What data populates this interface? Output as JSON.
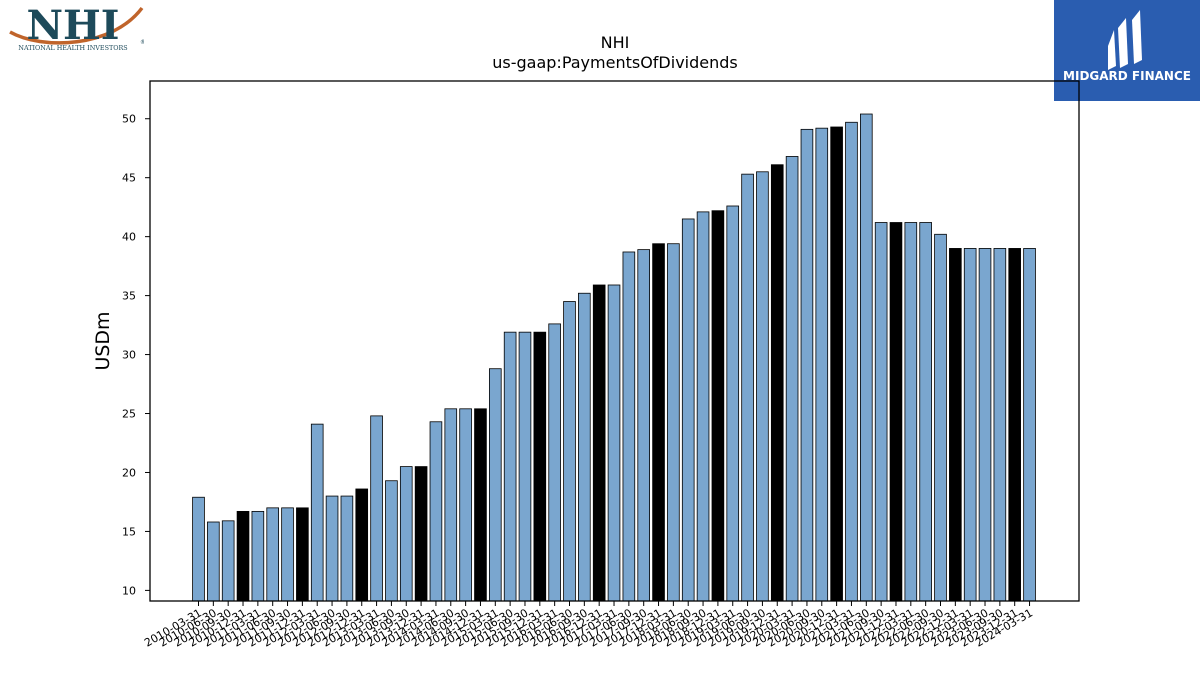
{
  "logo_left": {
    "letters": "NHI",
    "name": "NATIONAL HEALTH INVESTORS",
    "mark": "®",
    "color": "#1d4a5a",
    "swoosh": "#c0642b"
  },
  "logo_right": {
    "name": "MIDGARD FINANCE",
    "bg": "#2a5db0"
  },
  "chart_data": {
    "type": "bar",
    "title": "NHI",
    "subtitle": "us-gaap:PaymentsOfDividends",
    "xlabel": "",
    "ylabel": "USDm",
    "ylim": [
      9.1,
      53.2
    ],
    "yticks": [
      10,
      15,
      20,
      25,
      30,
      35,
      40,
      45,
      50
    ],
    "grid": false,
    "colors": {
      "normal": "#7aa6cf",
      "highlight": "#000000"
    },
    "categories": [
      "2010-03-31",
      "2010-06-30",
      "2010-09-30",
      "2010-12-31",
      "2011-03-31",
      "2011-06-30",
      "2011-09-30",
      "2011-12-31",
      "2012-03-31",
      "2012-06-30",
      "2012-09-30",
      "2012-12-31",
      "2013-03-31",
      "2013-06-30",
      "2013-09-30",
      "2013-12-31",
      "2014-03-31",
      "2014-06-30",
      "2014-09-30",
      "2014-12-31",
      "2015-03-31",
      "2015-06-30",
      "2015-09-30",
      "2015-12-31",
      "2016-03-31",
      "2016-06-30",
      "2016-09-30",
      "2016-12-31",
      "2017-03-31",
      "2017-06-30",
      "2017-09-30",
      "2017-12-31",
      "2018-03-31",
      "2018-06-30",
      "2018-09-30",
      "2018-12-31",
      "2019-03-31",
      "2019-06-30",
      "2019-09-30",
      "2019-12-31",
      "2020-03-31",
      "2020-06-30",
      "2020-09-30",
      "2020-12-31",
      "2021-03-31",
      "2021-06-30",
      "2021-09-30",
      "2021-12-31",
      "2022-03-31",
      "2022-06-30",
      "2022-09-30",
      "2022-12-31",
      "2023-03-31",
      "2023-06-30",
      "2023-09-30",
      "2023-12-31",
      "2024-03-31"
    ],
    "values": [
      17.9,
      15.8,
      15.9,
      16.7,
      16.7,
      17.0,
      17.0,
      17.0,
      24.1,
      18.0,
      18.0,
      18.6,
      24.8,
      19.3,
      20.5,
      20.5,
      24.3,
      25.4,
      25.4,
      25.4,
      28.8,
      31.9,
      31.9,
      31.9,
      32.6,
      34.5,
      35.2,
      35.9,
      35.9,
      38.7,
      38.9,
      39.4,
      39.4,
      41.5,
      42.1,
      42.2,
      42.6,
      45.3,
      45.5,
      46.1,
      46.8,
      49.1,
      49.2,
      49.3,
      49.7,
      50.4,
      41.2,
      41.2,
      41.2,
      41.2,
      40.2,
      39.0,
      39.0,
      39.0,
      39.0,
      39.0,
      39.0
    ],
    "highlight": [
      false,
      false,
      false,
      true,
      false,
      false,
      false,
      true,
      false,
      false,
      false,
      true,
      false,
      false,
      false,
      true,
      false,
      false,
      false,
      true,
      false,
      false,
      false,
      true,
      false,
      false,
      false,
      true,
      false,
      false,
      false,
      true,
      false,
      false,
      false,
      true,
      false,
      false,
      false,
      true,
      false,
      false,
      false,
      true,
      false,
      false,
      false,
      true,
      false,
      false,
      false,
      true,
      false,
      false,
      false,
      true,
      false
    ]
  }
}
